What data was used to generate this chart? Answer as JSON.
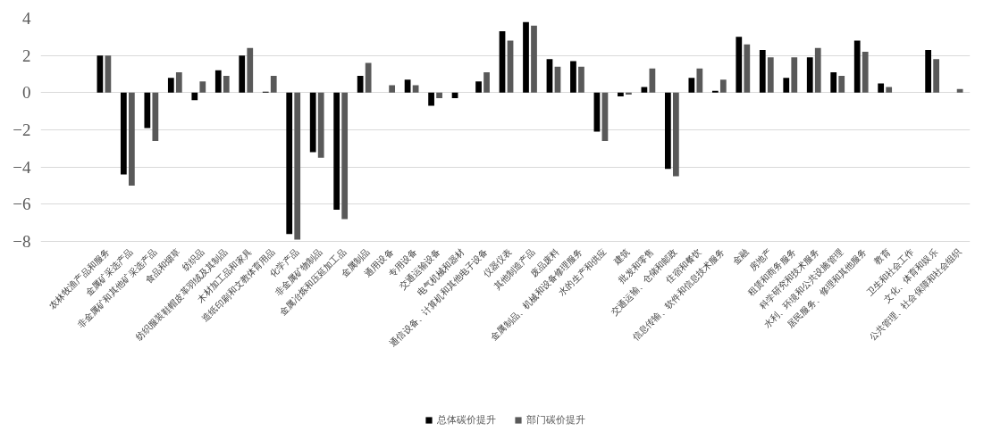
{
  "chart_data": {
    "type": "bar",
    "categories": [
      "农林牧渔产品和服务",
      "金属矿采选产品",
      "非金属矿和其他矿采选产品",
      "食品和烟草",
      "纺织品",
      "纺织服装鞋帽皮革羽绒及其制品",
      "木材加工品和家具",
      "造纸印刷和文教体育用品",
      "化学产品",
      "非金属矿物制品",
      "金属冶炼和压延加工品",
      "金属制品",
      "通用设备",
      "专用设备",
      "交通运输设备",
      "电气机械和器材",
      "通信设备、计算机和其他电子设备",
      "仪器仪表",
      "其他制造产品",
      "废品废料",
      "金属制品、机械和设备修理服务",
      "水的生产和供应",
      "建筑",
      "批发和零售",
      "交通运输、仓储和邮政",
      "住宿和餐饮",
      "信息传输、软件和信息技术服务",
      "金融",
      "房地产",
      "租赁和商务服务",
      "科学研究和技术服务",
      "水利、环境和公共设施管理",
      "居民服务、修理和其他服务",
      "教育",
      "卫生和社会工作",
      "文化、体育和娱乐",
      "公共管理、社会保障和社会组织"
    ],
    "series": [
      {
        "name": "总体碳价提升",
        "color": "#000000",
        "values": [
          2.0,
          -4.4,
          -1.9,
          0.8,
          -0.4,
          1.2,
          2.0,
          0.05,
          -7.6,
          -3.2,
          -6.3,
          0.9,
          0.0,
          0.7,
          -0.7,
          -0.3,
          0.6,
          3.3,
          3.8,
          1.8,
          1.7,
          -2.1,
          -0.2,
          0.3,
          -4.1,
          0.8,
          0.1,
          3.0,
          2.3,
          0.8,
          1.9,
          1.1,
          2.8,
          0.5,
          0.0,
          2.3,
          0.0
        ]
      },
      {
        "name": "部门碳价提升",
        "color": "#595959",
        "values": [
          2.0,
          -5.0,
          -2.6,
          1.1,
          0.6,
          0.9,
          2.4,
          0.9,
          -7.9,
          -3.5,
          -6.8,
          1.6,
          0.4,
          0.4,
          -0.3,
          0.0,
          1.1,
          2.8,
          3.6,
          1.4,
          1.4,
          -2.6,
          -0.1,
          1.3,
          -4.5,
          1.3,
          0.7,
          2.6,
          1.9,
          1.9,
          2.4,
          0.9,
          2.2,
          0.3,
          0.0,
          1.8,
          0.2
        ]
      }
    ],
    "ylim": [
      -8,
      4
    ],
    "yticks": [
      -8,
      -6,
      -4,
      -2,
      0,
      2,
      4
    ],
    "grid": "y",
    "legend": "bottom"
  }
}
